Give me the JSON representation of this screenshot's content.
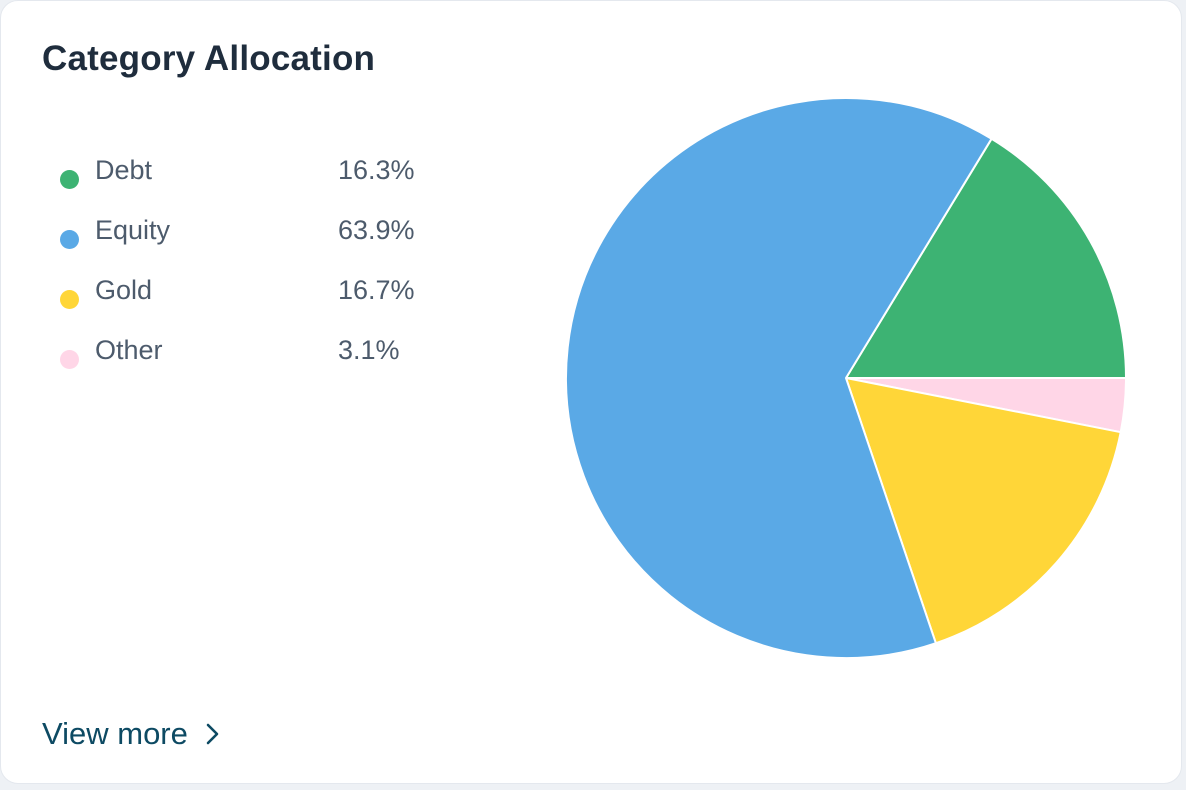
{
  "card": {
    "title": "Category Allocation",
    "view_more_label": "View more"
  },
  "legend": [
    {
      "label": "Debt",
      "value": "16.3%",
      "color": "#3db373"
    },
    {
      "label": "Equity",
      "value": "63.9%",
      "color": "#5aa9e6"
    },
    {
      "label": "Gold",
      "value": "16.7%",
      "color": "#ffd638"
    },
    {
      "label": "Other",
      "value": "3.1%",
      "color": "#ffd6e7"
    }
  ],
  "chart_data": {
    "type": "pie",
    "categories": [
      "Debt",
      "Other",
      "Gold",
      "Equity"
    ],
    "values": [
      16.3,
      3.1,
      16.7,
      63.9
    ],
    "colors": [
      "#3db373",
      "#ffd6e7",
      "#ffd638",
      "#5aa9e6"
    ],
    "start_direction": "right (3 o'clock), slices proceed anticlockwise from Debt and clockwise from Other",
    "title": "Category Allocation",
    "legend_position": "left"
  },
  "icons": {
    "view_more": "chevron-right-icon"
  }
}
